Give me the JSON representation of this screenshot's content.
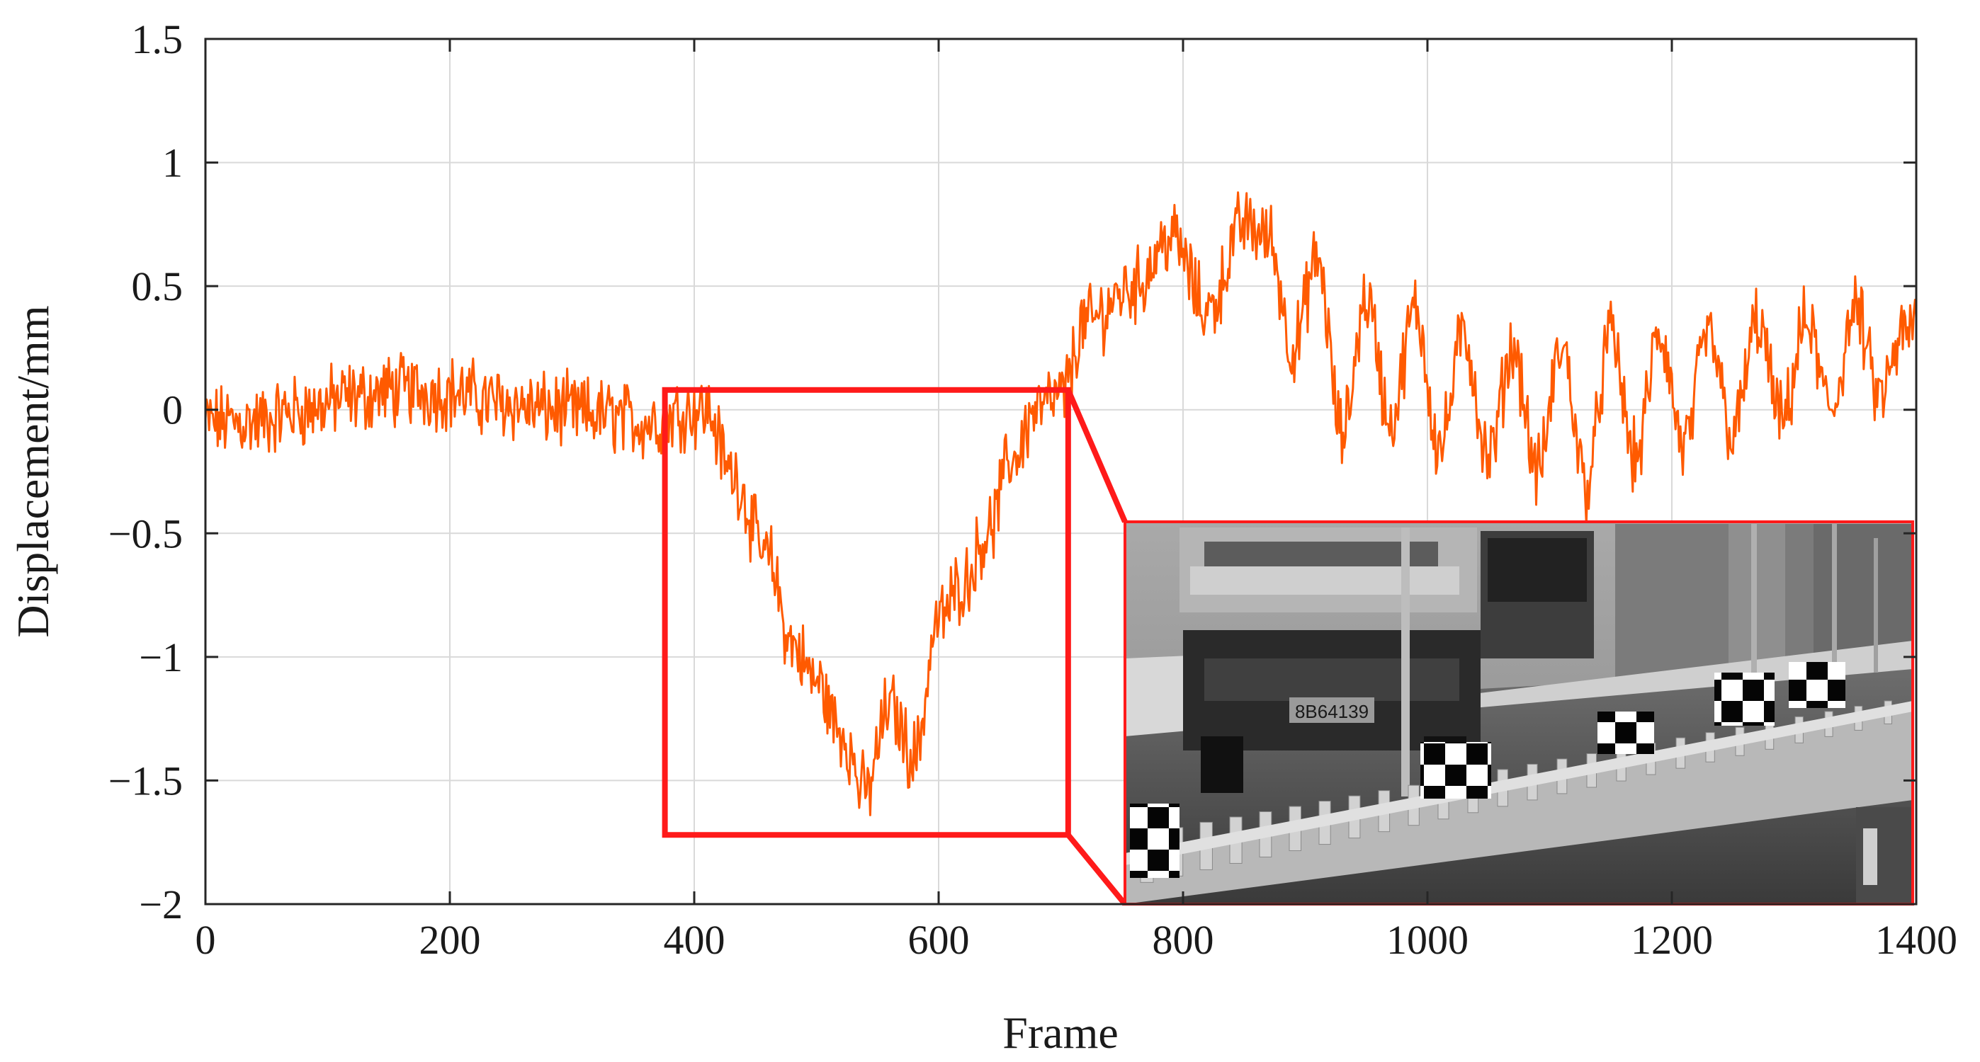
{
  "chart_data": {
    "type": "line",
    "xlabel": "Frame",
    "ylabel": "Displacement/mm",
    "xlim": [
      0,
      1400
    ],
    "ylim": [
      -2,
      1.5
    ],
    "xticks": [
      0,
      200,
      400,
      600,
      800,
      1000,
      1200,
      1400
    ],
    "xtick_labels": [
      "0",
      "200",
      "400",
      "600",
      "800",
      "1000",
      "1200",
      "1400"
    ],
    "yticks": [
      -2,
      -1.5,
      -1,
      -0.5,
      0,
      0.5,
      1,
      1.5
    ],
    "ytick_labels": [
      "−2",
      "−1.5",
      "−1",
      "−0.5",
      "0",
      "0.5",
      "1",
      "1.5"
    ],
    "grid": true,
    "series": [
      {
        "color": "#ff5a00",
        "x": [
          0,
          40,
          80,
          120,
          160,
          200,
          240,
          280,
          320,
          360,
          400,
          410,
          430,
          460,
          480,
          500,
          520,
          540,
          560,
          580,
          600,
          620,
          640,
          660,
          680,
          700,
          720,
          760,
          790,
          820,
          850,
          870,
          890,
          910,
          930,
          950,
          970,
          990,
          1010,
          1030,
          1050,
          1070,
          1090,
          1110,
          1130,
          1150,
          1170,
          1190,
          1210,
          1230,
          1250,
          1270,
          1290,
          1310,
          1330,
          1350,
          1370,
          1390,
          1400
        ],
        "y": [
          -0.05,
          -0.05,
          0.0,
          0.05,
          0.08,
          0.07,
          0.03,
          0.0,
          -0.02,
          -0.05,
          0.0,
          0.0,
          -0.25,
          -0.6,
          -0.95,
          -1.1,
          -1.3,
          -1.55,
          -1.2,
          -1.4,
          -0.85,
          -0.7,
          -0.5,
          -0.2,
          0.0,
          0.05,
          0.35,
          0.5,
          0.7,
          0.4,
          0.75,
          0.7,
          0.25,
          0.6,
          -0.1,
          0.45,
          -0.05,
          0.4,
          -0.15,
          0.3,
          -0.2,
          0.25,
          -0.25,
          0.25,
          -0.3,
          0.3,
          -0.2,
          0.3,
          -0.15,
          0.3,
          -0.1,
          0.35,
          -0.05,
          0.35,
          0.0,
          0.4,
          0.05,
          0.3,
          0.35
        ],
        "noise_amplitude": 0.12
      }
    ]
  },
  "inset": {
    "plate_text": "8B64139",
    "frame_color": "#ff1a1a",
    "zoom_box": {
      "x": [
        376,
        706
      ],
      "y": [
        -1.72,
        0.08
      ]
    }
  }
}
